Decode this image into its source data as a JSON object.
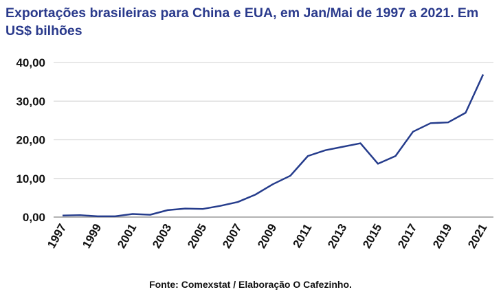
{
  "chart_data": {
    "type": "line",
    "title": "Exportações brasileiras para China e EUA, em Jan/Mai de 1997 a 2021. Em US$ bilhões",
    "source": "Fonte: Comexstat / Elaboração O Cafezinho.",
    "xlabel": "",
    "ylabel": "",
    "x": [
      1997,
      1998,
      1999,
      2000,
      2001,
      2002,
      2003,
      2004,
      2005,
      2006,
      2007,
      2008,
      2009,
      2010,
      2011,
      2012,
      2013,
      2014,
      2015,
      2016,
      2017,
      2018,
      2019,
      2020,
      2021
    ],
    "x_tick_labels": [
      "1997",
      "1999",
      "2001",
      "2003",
      "2005",
      "2007",
      "2009",
      "2011",
      "2013",
      "2015",
      "2017",
      "2019",
      "2021"
    ],
    "series": [
      {
        "name": "Exportações",
        "color": "#253c8c",
        "values": [
          0.4,
          0.5,
          0.2,
          0.2,
          0.8,
          0.6,
          1.8,
          2.2,
          2.1,
          2.9,
          3.9,
          5.8,
          8.5,
          10.7,
          15.8,
          17.3,
          18.2,
          19.1,
          13.8,
          15.8,
          22.1,
          24.3,
          24.5,
          27.0,
          36.9
        ]
      }
    ],
    "y_tick_labels": [
      "0,00",
      "10,00",
      "20,00",
      "30,00",
      "40,00"
    ],
    "y_ticks": [
      0,
      10,
      20,
      30,
      40
    ],
    "ylim": [
      0,
      40
    ],
    "grid": true,
    "legend": "none"
  }
}
